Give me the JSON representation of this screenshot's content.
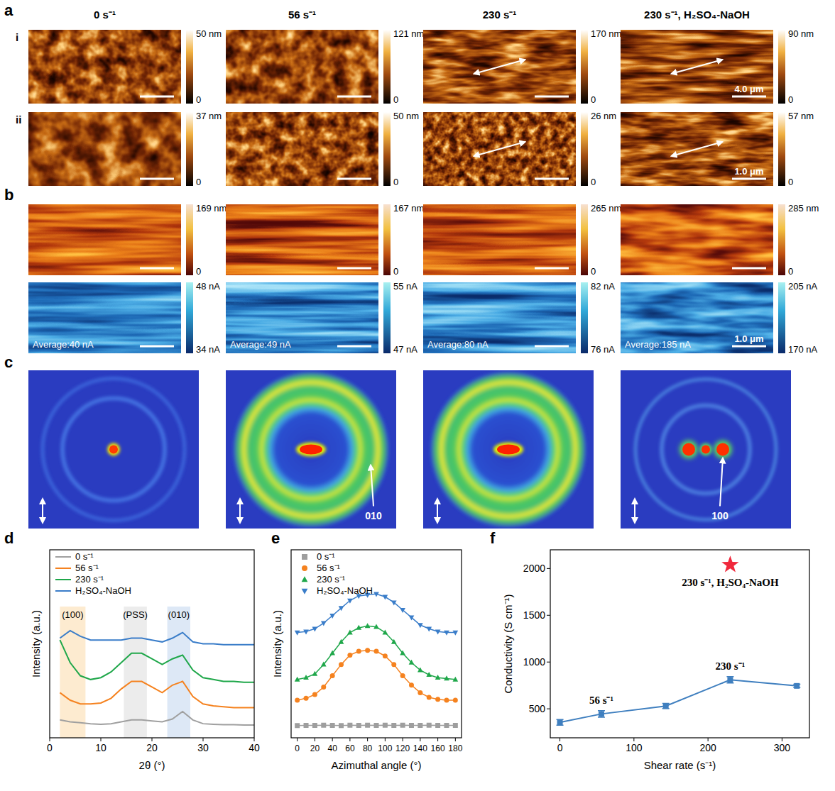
{
  "panel_labels": [
    "a",
    "b",
    "c",
    "d",
    "e",
    "f"
  ],
  "afm": {
    "columns": [
      "0 s⁻¹",
      "56 s⁻¹",
      "230 s⁻¹",
      "230 s⁻¹, H₂SO₄-NaOH"
    ],
    "rows": [
      {
        "label": "i",
        "scale_bar": "4.0 μm",
        "colorbars": [
          {
            "range": [
              0,
              50
            ],
            "ticks": [
              0,
              {
                "value": 50,
                "label": "50 nm"
              }
            ]
          },
          {
            "range": [
              0,
              121
            ],
            "ticks": [
              0,
              {
                "value": 121,
                "label": "121 nm"
              }
            ]
          },
          {
            "range": [
              0,
              170
            ],
            "ticks": [
              0,
              {
                "value": 170,
                "label": "170 nm"
              }
            ]
          },
          {
            "range": [
              0,
              90
            ],
            "ticks": [
              0,
              {
                "value": 90,
                "label": "90 nm"
              }
            ]
          }
        ]
      },
      {
        "label": "ii",
        "scale_bar": "1.0 μm",
        "colorbars": [
          {
            "range": [
              0,
              37
            ],
            "ticks": [
              0,
              {
                "value": 37,
                "label": "37 nm"
              }
            ]
          },
          {
            "range": [
              0,
              50
            ],
            "ticks": [
              0,
              {
                "value": 50,
                "label": "50 nm"
              }
            ]
          },
          {
            "range": [
              0,
              26
            ],
            "ticks": [
              0,
              {
                "value": 26,
                "label": "26 nm"
              }
            ]
          },
          {
            "range": [
              0,
              57
            ],
            "ticks": [
              0,
              {
                "value": 57,
                "label": "57 nm"
              }
            ]
          }
        ]
      }
    ]
  },
  "cafm": {
    "scale_bar": "1.0 μm",
    "height_colorbars": [
      {
        "range": [
          0,
          169
        ],
        "ticks": [
          0,
          {
            "value": 169,
            "label": "169 nm"
          }
        ]
      },
      {
        "range": [
          0,
          167
        ],
        "ticks": [
          0,
          {
            "value": 167,
            "label": "167 nm"
          }
        ]
      },
      {
        "range": [
          0,
          265
        ],
        "ticks": [
          0,
          {
            "value": 265,
            "label": "265 nm"
          }
        ]
      },
      {
        "range": [
          0,
          285
        ],
        "ticks": [
          0,
          {
            "value": 285,
            "label": "285 nm"
          }
        ]
      }
    ],
    "current_colorbars": [
      {
        "range": [
          34,
          48
        ],
        "ticks": [
          {
            "value": 34,
            "label": "34 nA"
          },
          {
            "value": 48,
            "label": "48 nA"
          }
        ]
      },
      {
        "range": [
          47,
          55
        ],
        "ticks": [
          {
            "value": 47,
            "label": "47 nA"
          },
          {
            "value": 55,
            "label": "55 nA"
          }
        ]
      },
      {
        "range": [
          76,
          82
        ],
        "ticks": [
          {
            "value": 76,
            "label": "76 nA"
          },
          {
            "value": 82,
            "label": "82 nA"
          }
        ]
      },
      {
        "range": [
          170,
          205
        ],
        "ticks": [
          {
            "value": 170,
            "label": "170 nA"
          },
          {
            "value": 205,
            "label": "205 nA"
          }
        ]
      }
    ],
    "averages": [
      {
        "value": 40,
        "label": "Average:40 nA"
      },
      {
        "value": 49,
        "label": "Average:49 nA"
      },
      {
        "value": 80,
        "label": "Average:80 nA"
      },
      {
        "value": 185,
        "label": "Average:185 nA"
      }
    ]
  },
  "giwaxs": {
    "labels": [
      {
        "index": 1,
        "text": "010"
      },
      {
        "index": 3,
        "text": "100"
      }
    ]
  },
  "chart_data": [
    {
      "type": "line",
      "xlabel": "2θ (°)",
      "ylabel": "Intensity (a.u.)",
      "x": [
        2,
        4,
        6,
        8,
        10,
        12,
        14,
        16,
        18,
        20,
        22,
        24,
        26,
        28,
        30,
        32,
        34,
        36,
        38,
        40
      ],
      "xlim": [
        0,
        40
      ],
      "xticks": [
        0,
        10,
        20,
        30,
        40
      ],
      "ylim": [
        0,
        10
      ],
      "tick_labels": "x",
      "legend": "upper-left",
      "bands": [
        {
          "range": [
            2,
            7
          ],
          "label": "(100)",
          "color": "#fdebd0"
        },
        {
          "range": [
            14.5,
            19
          ],
          "label": "(PSS)",
          "color": "#ececec"
        },
        {
          "range": [
            23,
            27.5
          ],
          "label": "(010)",
          "color": "#dde8f6"
        }
      ],
      "series": [
        {
          "name": "0 s⁻¹",
          "color": "#a0a0a0",
          "values": [
            0.95,
            0.85,
            0.8,
            0.75,
            0.72,
            0.75,
            0.85,
            0.95,
            0.95,
            0.9,
            0.85,
            1.0,
            1.4,
            0.95,
            0.75,
            0.72,
            0.7,
            0.7,
            0.68,
            0.68
          ]
        },
        {
          "name": "56 s⁻¹",
          "color": "#f5821f",
          "values": [
            2.4,
            2.0,
            1.8,
            1.8,
            1.85,
            2.1,
            2.6,
            3.0,
            3.0,
            2.7,
            2.4,
            2.8,
            3.0,
            2.2,
            1.8,
            1.7,
            1.65,
            1.6,
            1.6,
            1.6
          ]
        },
        {
          "name": "230 s⁻¹",
          "color": "#1fa74a",
          "values": [
            5.2,
            4.0,
            3.3,
            3.1,
            3.2,
            3.5,
            4.0,
            4.5,
            4.5,
            4.2,
            3.9,
            4.2,
            4.4,
            3.6,
            3.2,
            3.1,
            3.0,
            3.0,
            2.95,
            2.95
          ]
        },
        {
          "name": "H₂SO₄-NaOH",
          "color": "#3a7dc9",
          "values": [
            5.3,
            5.7,
            5.4,
            5.2,
            5.2,
            5.2,
            5.2,
            5.3,
            5.3,
            5.2,
            5.1,
            5.3,
            5.6,
            5.1,
            5.0,
            5.0,
            4.95,
            4.95,
            4.95,
            4.95
          ]
        }
      ]
    },
    {
      "type": "line",
      "xlabel": "Azimuthal angle (°)",
      "ylabel": "Intensity (a.u.)",
      "x": [
        0,
        10,
        20,
        30,
        40,
        50,
        60,
        70,
        80,
        90,
        100,
        110,
        120,
        130,
        140,
        150,
        160,
        170,
        180
      ],
      "xlim": [
        -7,
        187
      ],
      "xticks": [
        0,
        20,
        40,
        60,
        80,
        100,
        120,
        140,
        160,
        180
      ],
      "ylim": [
        0,
        10
      ],
      "tick_labels": "x",
      "legend": "upper-left",
      "series": [
        {
          "name": "0 s⁻¹",
          "color": "#9e9e9e",
          "marker": "square",
          "values": [
            0.65,
            0.66,
            0.66,
            0.67,
            0.66,
            0.65,
            0.67,
            0.66,
            0.67,
            0.66,
            0.67,
            0.66,
            0.67,
            0.66,
            0.66,
            0.67,
            0.66,
            0.66,
            0.66
          ]
        },
        {
          "name": "56 s⁻¹",
          "color": "#f5821f",
          "marker": "circle",
          "values": [
            2.0,
            2.1,
            2.3,
            2.7,
            3.3,
            3.9,
            4.4,
            4.6,
            4.65,
            4.6,
            4.35,
            3.9,
            3.3,
            2.8,
            2.4,
            2.15,
            2.05,
            2.0,
            2.0
          ]
        },
        {
          "name": "230 s⁻¹",
          "color": "#1fa74a",
          "marker": "triangle",
          "values": [
            3.1,
            3.2,
            3.4,
            3.9,
            4.5,
            5.1,
            5.6,
            5.85,
            5.95,
            5.9,
            5.6,
            5.1,
            4.5,
            4.0,
            3.6,
            3.35,
            3.2,
            3.15,
            3.1
          ]
        },
        {
          "name": "H₂SO₄-NaOH",
          "color": "#3a7dc9",
          "marker": "triangle-down",
          "values": [
            5.6,
            5.65,
            5.8,
            6.1,
            6.5,
            6.9,
            7.3,
            7.55,
            7.6,
            7.65,
            7.5,
            7.2,
            6.8,
            6.4,
            6.0,
            5.8,
            5.65,
            5.6,
            5.6
          ]
        }
      ]
    },
    {
      "type": "line",
      "xlabel": "Shear rate (s⁻¹)",
      "ylabel": "Conductivity (S cm⁻¹)",
      "xlim": [
        -13,
        337
      ],
      "xticks": [
        0,
        100,
        200,
        300
      ],
      "ylim": [
        190,
        2200
      ],
      "yticks": [
        500,
        1000,
        1500,
        2000
      ],
      "series": [
        {
          "type": "line",
          "marker": "square",
          "color": "#3f7fbf",
          "x": [
            0,
            56,
            143,
            230,
            320
          ],
          "values": [
            355,
            445,
            530,
            810,
            745
          ],
          "errors": [
            30,
            35,
            28,
            35,
            18
          ]
        },
        {
          "type": "scatter",
          "marker": "star",
          "color": "#f0283c",
          "x": [
            230
          ],
          "values": [
            2040
          ]
        }
      ],
      "annotations": [
        {
          "text": "56 s⁻¹",
          "series": 0,
          "index": 1
        },
        {
          "text": "230 s⁻¹",
          "series": 0,
          "index": 3
        },
        {
          "text": "230 s⁻¹, H₂SO₄-NaOH",
          "series": 1,
          "index": 0
        }
      ]
    }
  ]
}
